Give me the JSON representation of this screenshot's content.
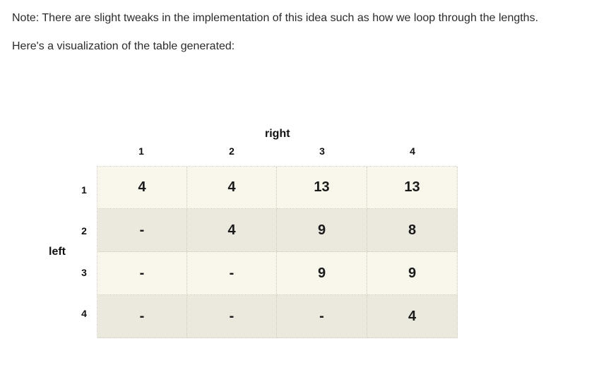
{
  "text": {
    "note": "Note: There are slight tweaks in the implementation of this idea such as how we loop through the lengths.",
    "intro": "Here's a visualization of the table generated:"
  },
  "table": {
    "column_axis_title": "right",
    "row_axis_title": "left",
    "column_labels": [
      "1",
      "2",
      "3",
      "4"
    ],
    "row_labels": [
      "1",
      "2",
      "3",
      "4"
    ],
    "rows": [
      [
        "4",
        "4",
        "13",
        "13"
      ],
      [
        "-",
        "4",
        "9",
        "8"
      ],
      [
        "-",
        "-",
        "9",
        "9"
      ],
      [
        "-",
        "-",
        "-",
        "4"
      ]
    ],
    "colors": {
      "row_light": "#f9f7ec",
      "row_dark": "#ebe8dd"
    }
  }
}
